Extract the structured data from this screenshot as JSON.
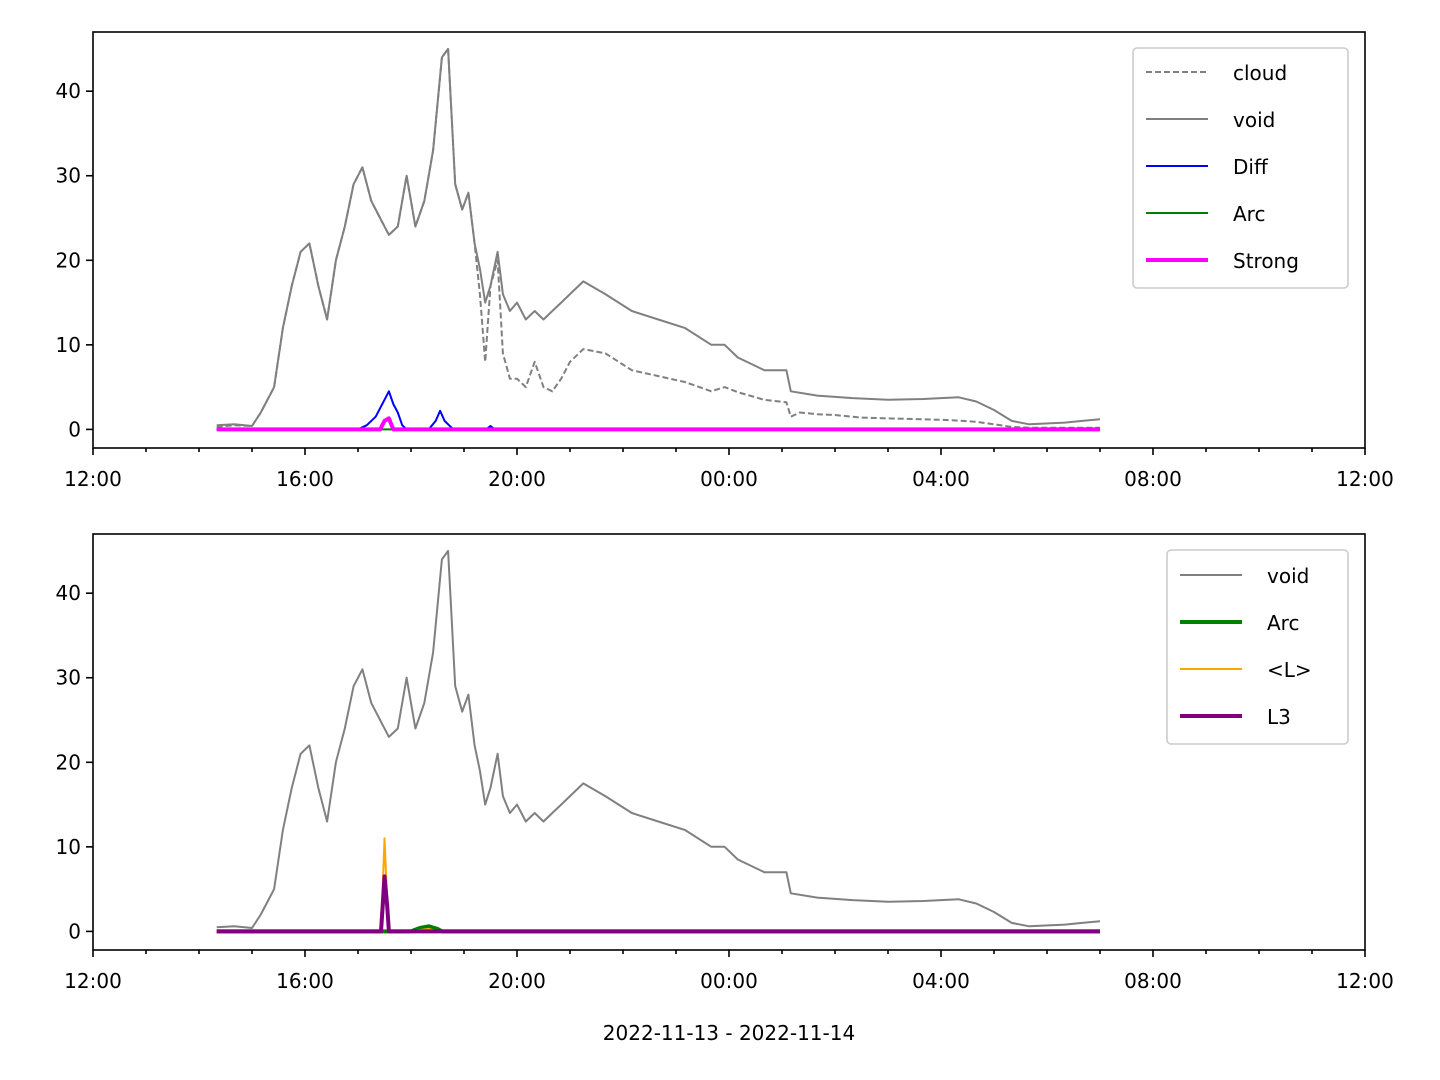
{
  "chart_data": [
    {
      "type": "line",
      "panel": "top",
      "xlim": [
        "2022-11-13 12:00",
        "2022-11-14 12:00"
      ],
      "ylim": [
        -2.2,
        47
      ],
      "x_ticks": [
        "12:00",
        "16:00",
        "20:00",
        "00:00",
        "04:00",
        "08:00",
        "12:00"
      ],
      "y_ticks": [
        "0",
        "10",
        "20",
        "30",
        "40"
      ],
      "y_tick_values": [
        0,
        10,
        20,
        30,
        40
      ],
      "legend_position": "top-right",
      "xlabel": "",
      "series": [
        {
          "name": "cloud",
          "color": "#808080",
          "style": "dashed",
          "points": [
            [
              "14:20",
              0.3
            ],
            [
              "14:40",
              0.5
            ],
            [
              "15:00",
              0.4
            ],
            [
              "15:10",
              2
            ],
            [
              "15:25",
              5
            ],
            [
              "15:35",
              12
            ],
            [
              "15:45",
              17
            ],
            [
              "15:55",
              21
            ],
            [
              "16:05",
              22
            ],
            [
              "16:15",
              17
            ],
            [
              "16:25",
              13
            ],
            [
              "16:35",
              20
            ],
            [
              "16:45",
              24
            ],
            [
              "16:55",
              29
            ],
            [
              "17:05",
              31
            ],
            [
              "17:15",
              27
            ],
            [
              "17:25",
              25
            ],
            [
              "17:35",
              23
            ],
            [
              "17:45",
              24
            ],
            [
              "17:55",
              30
            ],
            [
              "18:05",
              24
            ],
            [
              "18:15",
              27
            ],
            [
              "18:25",
              33
            ],
            [
              "18:35",
              44
            ],
            [
              "18:42",
              45
            ],
            [
              "18:50",
              29
            ],
            [
              "18:58",
              26
            ],
            [
              "19:05",
              28
            ],
            [
              "19:12",
              22
            ],
            [
              "19:18",
              16
            ],
            [
              "19:24",
              8
            ],
            [
              "19:30",
              17
            ],
            [
              "19:38",
              20
            ],
            [
              "19:44",
              9
            ],
            [
              "19:52",
              6
            ],
            [
              "20:00",
              6
            ],
            [
              "20:10",
              5
            ],
            [
              "20:20",
              8
            ],
            [
              "20:30",
              5
            ],
            [
              "20:40",
              4.5
            ],
            [
              "20:50",
              6
            ],
            [
              "21:00",
              8
            ],
            [
              "21:15",
              9.5
            ],
            [
              "21:40",
              9
            ],
            [
              "22:10",
              7
            ],
            [
              "22:40",
              6.3
            ],
            [
              "23:10",
              5.6
            ],
            [
              "23:40",
              4.5
            ],
            [
              "23:55",
              5
            ],
            [
              "00:10",
              4.4
            ],
            [
              "00:40",
              3.5
            ],
            [
              "01:05",
              3.2
            ],
            [
              "01:10",
              1.5
            ],
            [
              "01:20",
              2
            ],
            [
              "01:40",
              1.8
            ],
            [
              "02:00",
              1.7
            ],
            [
              "02:30",
              1.4
            ],
            [
              "03:00",
              1.3
            ],
            [
              "03:40",
              1.2
            ],
            [
              "04:10",
              1.1
            ],
            [
              "04:40",
              0.9
            ],
            [
              "05:00",
              0.6
            ],
            [
              "05:20",
              0.3
            ],
            [
              "05:40",
              0.2
            ],
            [
              "06:20",
              0.2
            ],
            [
              "07:00",
              0.2
            ]
          ]
        },
        {
          "name": "void",
          "color": "#808080",
          "style": "solid",
          "points": [
            [
              "14:20",
              0.5
            ],
            [
              "14:40",
              0.6
            ],
            [
              "15:00",
              0.4
            ],
            [
              "15:10",
              2
            ],
            [
              "15:25",
              5
            ],
            [
              "15:35",
              12
            ],
            [
              "15:45",
              17
            ],
            [
              "15:55",
              21
            ],
            [
              "16:05",
              22
            ],
            [
              "16:15",
              17
            ],
            [
              "16:25",
              13
            ],
            [
              "16:35",
              20
            ],
            [
              "16:45",
              24
            ],
            [
              "16:55",
              29
            ],
            [
              "17:05",
              31
            ],
            [
              "17:15",
              27
            ],
            [
              "17:25",
              25
            ],
            [
              "17:35",
              23
            ],
            [
              "17:45",
              24
            ],
            [
              "17:55",
              30
            ],
            [
              "18:05",
              24
            ],
            [
              "18:15",
              27
            ],
            [
              "18:25",
              33
            ],
            [
              "18:35",
              44
            ],
            [
              "18:42",
              45
            ],
            [
              "18:50",
              29
            ],
            [
              "18:58",
              26
            ],
            [
              "19:05",
              28
            ],
            [
              "19:12",
              22
            ],
            [
              "19:18",
              19
            ],
            [
              "19:24",
              15
            ],
            [
              "19:30",
              17
            ],
            [
              "19:38",
              21
            ],
            [
              "19:44",
              16
            ],
            [
              "19:52",
              14
            ],
            [
              "20:00",
              15
            ],
            [
              "20:10",
              13
            ],
            [
              "20:20",
              14
            ],
            [
              "20:30",
              13
            ],
            [
              "20:40",
              14
            ],
            [
              "20:50",
              15
            ],
            [
              "21:00",
              16
            ],
            [
              "21:15",
              17.5
            ],
            [
              "21:40",
              16
            ],
            [
              "22:10",
              14
            ],
            [
              "22:40",
              13
            ],
            [
              "23:10",
              12
            ],
            [
              "23:40",
              10
            ],
            [
              "23:55",
              10
            ],
            [
              "00:10",
              8.5
            ],
            [
              "00:40",
              7
            ],
            [
              "01:05",
              7
            ],
            [
              "01:10",
              4.5
            ],
            [
              "01:40",
              4
            ],
            [
              "02:20",
              3.7
            ],
            [
              "03:00",
              3.5
            ],
            [
              "03:40",
              3.6
            ],
            [
              "04:20",
              3.8
            ],
            [
              "04:40",
              3.3
            ],
            [
              "05:00",
              2.3
            ],
            [
              "05:20",
              1
            ],
            [
              "05:40",
              0.6
            ],
            [
              "06:20",
              0.8
            ],
            [
              "06:40",
              1
            ],
            [
              "07:00",
              1.2
            ]
          ]
        },
        {
          "name": "Diff",
          "color": "#0000ff",
          "style": "solid",
          "points": [
            [
              "14:20",
              0
            ],
            [
              "17:00",
              0
            ],
            [
              "17:10",
              0.5
            ],
            [
              "17:20",
              1.5
            ],
            [
              "17:30",
              3.5
            ],
            [
              "17:35",
              4.5
            ],
            [
              "17:40",
              3
            ],
            [
              "17:45",
              2
            ],
            [
              "17:50",
              0.5
            ],
            [
              "17:55",
              0
            ],
            [
              "18:20",
              0
            ],
            [
              "18:28",
              1
            ],
            [
              "18:33",
              2.2
            ],
            [
              "18:38",
              1
            ],
            [
              "18:43",
              0.5
            ],
            [
              "18:48",
              0
            ],
            [
              "19:25",
              0
            ],
            [
              "19:30",
              0.4
            ],
            [
              "19:35",
              0
            ],
            [
              "07:00",
              0
            ]
          ]
        },
        {
          "name": "Arc",
          "color": "#008000",
          "style": "solid",
          "points": [
            [
              "14:20",
              0
            ],
            [
              "07:00",
              0
            ]
          ]
        },
        {
          "name": "Strong",
          "color": "#ff00ff",
          "style": "solid-thick",
          "points": [
            [
              "14:20",
              0
            ],
            [
              "17:25",
              0
            ],
            [
              "17:30",
              1
            ],
            [
              "17:35",
              1.3
            ],
            [
              "17:40",
              0
            ],
            [
              "07:00",
              0
            ]
          ]
        }
      ]
    },
    {
      "type": "line",
      "panel": "bottom",
      "xlim": [
        "2022-11-13 12:00",
        "2022-11-14 12:00"
      ],
      "ylim": [
        -2.2,
        47
      ],
      "x_ticks": [
        "12:00",
        "16:00",
        "20:00",
        "00:00",
        "04:00",
        "08:00",
        "12:00"
      ],
      "y_ticks": [
        "0",
        "10",
        "20",
        "30",
        "40"
      ],
      "y_tick_values": [
        0,
        10,
        20,
        30,
        40
      ],
      "legend_position": "top-right",
      "xlabel": "2022-11-13 - 2022-11-14",
      "series": [
        {
          "name": "void",
          "color": "#808080",
          "style": "solid",
          "points": [
            [
              "14:20",
              0.5
            ],
            [
              "14:40",
              0.6
            ],
            [
              "15:00",
              0.4
            ],
            [
              "15:10",
              2
            ],
            [
              "15:25",
              5
            ],
            [
              "15:35",
              12
            ],
            [
              "15:45",
              17
            ],
            [
              "15:55",
              21
            ],
            [
              "16:05",
              22
            ],
            [
              "16:15",
              17
            ],
            [
              "16:25",
              13
            ],
            [
              "16:35",
              20
            ],
            [
              "16:45",
              24
            ],
            [
              "16:55",
              29
            ],
            [
              "17:05",
              31
            ],
            [
              "17:15",
              27
            ],
            [
              "17:25",
              25
            ],
            [
              "17:35",
              23
            ],
            [
              "17:45",
              24
            ],
            [
              "17:55",
              30
            ],
            [
              "18:05",
              24
            ],
            [
              "18:15",
              27
            ],
            [
              "18:25",
              33
            ],
            [
              "18:35",
              44
            ],
            [
              "18:42",
              45
            ],
            [
              "18:50",
              29
            ],
            [
              "18:58",
              26
            ],
            [
              "19:05",
              28
            ],
            [
              "19:12",
              22
            ],
            [
              "19:18",
              19
            ],
            [
              "19:24",
              15
            ],
            [
              "19:30",
              17
            ],
            [
              "19:38",
              21
            ],
            [
              "19:44",
              16
            ],
            [
              "19:52",
              14
            ],
            [
              "20:00",
              15
            ],
            [
              "20:10",
              13
            ],
            [
              "20:20",
              14
            ],
            [
              "20:30",
              13
            ],
            [
              "20:40",
              14
            ],
            [
              "20:50",
              15
            ],
            [
              "21:00",
              16
            ],
            [
              "21:15",
              17.5
            ],
            [
              "21:40",
              16
            ],
            [
              "22:10",
              14
            ],
            [
              "22:40",
              13
            ],
            [
              "23:10",
              12
            ],
            [
              "23:40",
              10
            ],
            [
              "23:55",
              10
            ],
            [
              "00:10",
              8.5
            ],
            [
              "00:40",
              7
            ],
            [
              "01:05",
              7
            ],
            [
              "01:10",
              4.5
            ],
            [
              "01:40",
              4
            ],
            [
              "02:20",
              3.7
            ],
            [
              "03:00",
              3.5
            ],
            [
              "03:40",
              3.6
            ],
            [
              "04:20",
              3.8
            ],
            [
              "04:40",
              3.3
            ],
            [
              "05:00",
              2.3
            ],
            [
              "05:20",
              1
            ],
            [
              "05:40",
              0.6
            ],
            [
              "06:20",
              0.8
            ],
            [
              "06:40",
              1
            ],
            [
              "07:00",
              1.2
            ]
          ]
        },
        {
          "name": "Arc",
          "color": "#008000",
          "style": "solid-thick",
          "points": [
            [
              "14:20",
              0
            ],
            [
              "18:00",
              0
            ],
            [
              "18:10",
              0.4
            ],
            [
              "18:20",
              0.6
            ],
            [
              "18:30",
              0.3
            ],
            [
              "18:35",
              0
            ],
            [
              "07:00",
              0
            ]
          ]
        },
        {
          "name": "<L>",
          "color": "#ffa500",
          "style": "solid",
          "points": [
            [
              "14:20",
              0
            ],
            [
              "17:25",
              0
            ],
            [
              "17:28",
              5
            ],
            [
              "17:30",
              11
            ],
            [
              "17:32",
              6
            ],
            [
              "17:35",
              0
            ],
            [
              "18:00",
              0
            ],
            [
              "18:20",
              0.3
            ],
            [
              "18:30",
              0
            ],
            [
              "07:00",
              0
            ]
          ]
        },
        {
          "name": "L3",
          "color": "#800080",
          "style": "solid-thick",
          "points": [
            [
              "14:20",
              0
            ],
            [
              "17:26",
              0
            ],
            [
              "17:28",
              3
            ],
            [
              "17:30",
              6.5
            ],
            [
              "17:33",
              3
            ],
            [
              "17:35",
              0
            ],
            [
              "07:00",
              0
            ]
          ]
        }
      ]
    }
  ]
}
